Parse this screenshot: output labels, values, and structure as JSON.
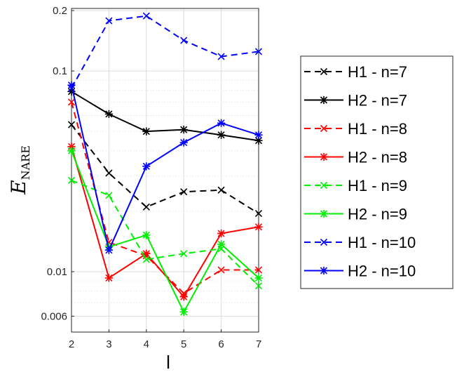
{
  "chart_data": {
    "type": "line",
    "x": [
      2,
      3,
      4,
      5,
      6,
      7
    ],
    "xlabel": "l",
    "ylabel": {
      "main": "E",
      "sub": "NARE"
    },
    "yscale": "log",
    "xlim": [
      2,
      7
    ],
    "ylim": [
      0.005,
      0.205
    ],
    "xticks": [
      "2",
      "3",
      "4",
      "5",
      "6",
      "7"
    ],
    "yticks": [
      {
        "value": 0.006,
        "label": "0.006"
      },
      {
        "value": 0.01,
        "label": "0.01"
      },
      {
        "value": 0.1,
        "label": "0.1"
      },
      {
        "value": 0.2,
        "label": "0.2"
      }
    ],
    "grid": true,
    "legend_position": "right",
    "series": [
      {
        "name": "H1 - n=7",
        "color": "#000000",
        "dash": true,
        "marker": "x",
        "values": [
          0.054,
          0.031,
          0.021,
          0.025,
          0.0255,
          0.0195
        ]
      },
      {
        "name": "H2 - n=7",
        "color": "#000000",
        "dash": false,
        "marker": "*",
        "values": [
          0.079,
          0.061,
          0.05,
          0.051,
          0.048,
          0.045
        ]
      },
      {
        "name": "H1 - n=8",
        "color": "#ff0000",
        "dash": true,
        "marker": "x",
        "values": [
          0.07,
          0.014,
          0.012,
          0.0078,
          0.0102,
          0.0102
        ]
      },
      {
        "name": "H2 - n=8",
        "color": "#ff0000",
        "dash": false,
        "marker": "*",
        "values": [
          0.042,
          0.0093,
          0.0123,
          0.0075,
          0.0155,
          0.0167
        ]
      },
      {
        "name": "H1 - n=9",
        "color": "#00ee00",
        "dash": true,
        "marker": "x",
        "values": [
          0.0285,
          0.024,
          0.0115,
          0.0123,
          0.013,
          0.0085
        ]
      },
      {
        "name": "H2 - n=9",
        "color": "#00ee00",
        "dash": false,
        "marker": "*",
        "values": [
          0.04,
          0.0133,
          0.0152,
          0.0063,
          0.0137,
          0.0093
        ]
      },
      {
        "name": "H1 - n=10",
        "color": "#0000ff",
        "dash": true,
        "marker": "x",
        "values": [
          0.082,
          0.178,
          0.188,
          0.142,
          0.118,
          0.125
        ]
      },
      {
        "name": "H2 - n=10",
        "color": "#0000ff",
        "dash": false,
        "marker": "*",
        "values": [
          0.085,
          0.0128,
          0.0335,
          0.044,
          0.055,
          0.048
        ]
      }
    ]
  }
}
